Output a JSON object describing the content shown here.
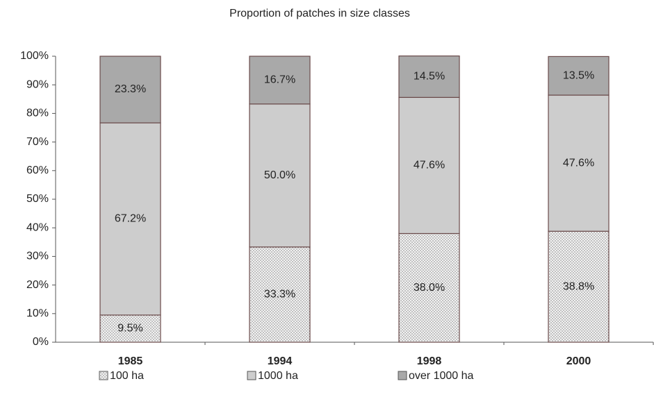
{
  "chart_data": {
    "type": "stacked-bar",
    "title": "Proportion of patches in size classes",
    "categories": [
      "1985",
      "1994",
      "1998",
      "2000"
    ],
    "series": [
      {
        "name": "100 ha",
        "color": "#f2f2f2",
        "pattern": "dotted",
        "values": [
          9.5,
          33.3,
          38.0,
          38.8
        ],
        "value_labels": [
          "9.5%",
          "33.3%",
          "38.0%",
          "38.8%"
        ]
      },
      {
        "name": "1000 ha",
        "color": "#cdcdcd",
        "values": [
          67.2,
          50.0,
          47.6,
          47.6
        ],
        "value_labels": [
          "67.2%",
          "50.0%",
          "47.6%",
          "47.6%"
        ]
      },
      {
        "name": "over 1000 ha",
        "color": "#a9a9a9",
        "values": [
          23.3,
          16.7,
          14.5,
          13.5
        ],
        "value_labels": [
          "23.3%",
          "16.7%",
          "14.5%",
          "13.5%"
        ]
      }
    ],
    "ylim": [
      0,
      100
    ],
    "yticks": [
      {
        "value": 0,
        "label": "0%"
      },
      {
        "value": 10,
        "label": "10%"
      },
      {
        "value": 20,
        "label": "20%"
      },
      {
        "value": 30,
        "label": "30%"
      },
      {
        "value": 40,
        "label": "40%"
      },
      {
        "value": 50,
        "label": "50%"
      },
      {
        "value": 60,
        "label": "60%"
      },
      {
        "value": 70,
        "label": "70%"
      },
      {
        "value": 80,
        "label": "80%"
      },
      {
        "value": 90,
        "label": "90%"
      },
      {
        "value": 100,
        "label": "100%"
      }
    ],
    "legend": "bottom"
  }
}
